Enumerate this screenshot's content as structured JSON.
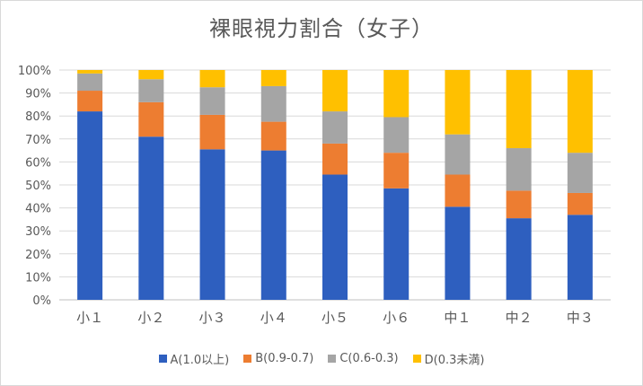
{
  "chart_data": {
    "type": "bar",
    "stacked": true,
    "title": "裸眼視力割合（女子）",
    "categories": [
      "小１",
      "小２",
      "小３",
      "小４",
      "小５",
      "小６",
      "中１",
      "中２",
      "中３"
    ],
    "ylim": [
      0,
      100
    ],
    "yticks": [
      "0%",
      "10%",
      "20%",
      "30%",
      "40%",
      "50%",
      "60%",
      "70%",
      "80%",
      "90%",
      "100%"
    ],
    "grid": true,
    "legend_position": "bottom",
    "series": [
      {
        "name": "A(1.0以上)",
        "color": "#2e5fbf",
        "values": [
          82,
          71,
          65.5,
          65,
          54.5,
          48.5,
          40.5,
          35.5,
          37
        ]
      },
      {
        "name": "B(0.9-0.7)",
        "color": "#ed7d31",
        "values": [
          9,
          15,
          15,
          12.5,
          13.5,
          15.5,
          14,
          12,
          9.5
        ]
      },
      {
        "name": "C(0.6-0.3)",
        "color": "#a5a5a5",
        "values": [
          7.5,
          10,
          12,
          15.5,
          14,
          15.5,
          17.5,
          18.5,
          17.5
        ]
      },
      {
        "name": "D(0.3未満)",
        "color": "#ffc000",
        "values": [
          1.5,
          4,
          7.5,
          7,
          18,
          20.5,
          28,
          34,
          36
        ]
      }
    ]
  }
}
